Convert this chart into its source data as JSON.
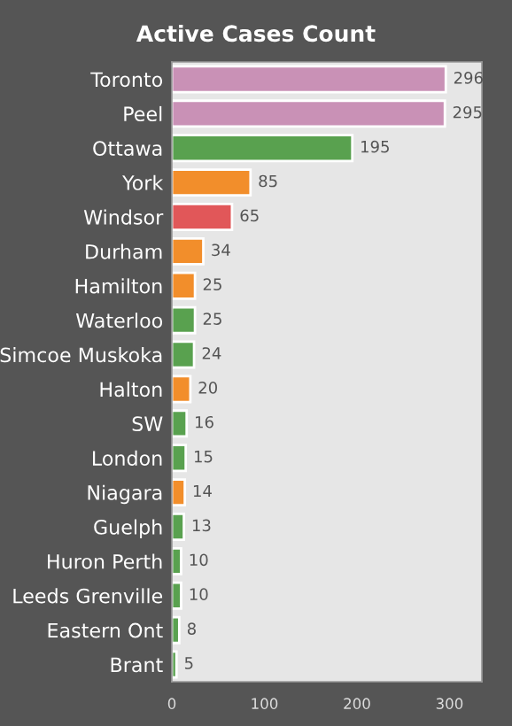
{
  "chart_data": {
    "type": "bar",
    "orientation": "horizontal",
    "title": "Active Cases Count",
    "categories": [
      "Toronto",
      "Peel",
      "Ottawa",
      "York",
      "Windsor",
      "Durham",
      "Hamilton",
      "Waterloo",
      "Simcoe Muskoka",
      "Halton",
      "SW",
      "London",
      "Niagara",
      "Guelph",
      "Huron Perth",
      "Leeds Grenville",
      "Eastern Ont",
      "Brant"
    ],
    "values": [
      296,
      295,
      195,
      85,
      65,
      34,
      25,
      25,
      24,
      20,
      16,
      15,
      14,
      13,
      10,
      10,
      8,
      5
    ],
    "colors": [
      "#c991b6",
      "#c991b6",
      "#59a14f",
      "#f28e2b",
      "#e15759",
      "#f28e2b",
      "#f28e2b",
      "#59a14f",
      "#59a14f",
      "#f28e2b",
      "#59a14f",
      "#59a14f",
      "#f28e2b",
      "#59a14f",
      "#59a14f",
      "#59a14f",
      "#59a14f",
      "#59a14f"
    ],
    "data_labels": true,
    "xlim": [
      0,
      335
    ],
    "xticks": [
      0,
      100,
      200,
      300
    ]
  }
}
